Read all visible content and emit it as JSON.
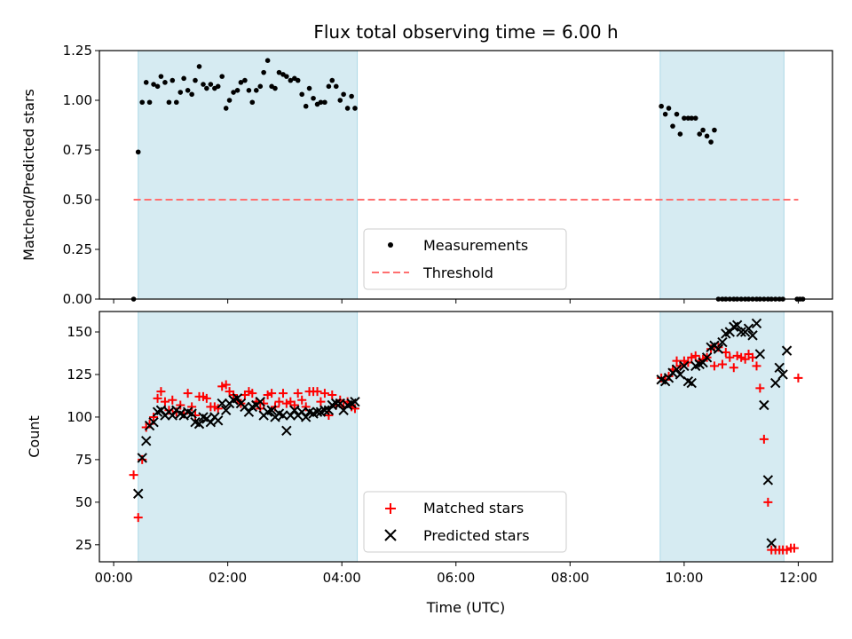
{
  "chart_data": [
    {
      "type": "scatter",
      "title": "Flux total observing time = 6.00 h",
      "xlabel": "",
      "ylabel": "Matched/Predicted stars",
      "xlim": [
        -0.25,
        12.6
      ],
      "ylim": [
        0,
        1.25
      ],
      "yticks": [
        "0.00",
        "0.25",
        "0.50",
        "0.75",
        "1.00",
        "1.25"
      ],
      "shaded_intervals": [
        [
          0.43,
          4.27
        ],
        [
          9.58,
          11.75
        ]
      ],
      "shade_color": "#add8e6",
      "legend_position": "lower-center",
      "series": [
        {
          "name": "Measurements",
          "marker": "dot",
          "color": "#000000",
          "x": [
            0.35,
            0.43,
            0.5,
            0.57,
            0.63,
            0.7,
            0.77,
            0.83,
            0.9,
            0.97,
            1.03,
            1.1,
            1.17,
            1.23,
            1.3,
            1.37,
            1.43,
            1.5,
            1.57,
            1.63,
            1.7,
            1.77,
            1.83,
            1.9,
            1.97,
            2.03,
            2.1,
            2.17,
            2.23,
            2.3,
            2.37,
            2.43,
            2.5,
            2.57,
            2.63,
            2.7,
            2.77,
            2.83,
            2.9,
            2.97,
            3.03,
            3.1,
            3.17,
            3.23,
            3.3,
            3.37,
            3.43,
            3.5,
            3.57,
            3.63,
            3.7,
            3.77,
            3.83,
            3.9,
            3.97,
            4.03,
            4.1,
            4.17,
            4.23,
            9.6,
            9.67,
            9.73,
            9.8,
            9.87,
            9.93,
            10.0,
            10.07,
            10.13,
            10.2,
            10.27,
            10.33,
            10.4,
            10.47,
            10.53,
            10.6,
            10.67,
            10.73,
            10.8,
            10.87,
            10.93,
            11.0,
            11.07,
            11.13,
            11.2,
            11.27,
            11.33,
            11.4,
            11.47,
            11.53,
            11.6,
            11.67,
            11.73,
            11.98,
            12.03,
            12.08
          ],
          "y": [
            0.0,
            0.74,
            0.99,
            1.09,
            0.99,
            1.08,
            1.07,
            1.12,
            1.09,
            0.99,
            1.1,
            0.99,
            1.04,
            1.11,
            1.05,
            1.03,
            1.1,
            1.17,
            1.08,
            1.06,
            1.08,
            1.06,
            1.07,
            1.12,
            0.96,
            1.0,
            1.04,
            1.05,
            1.09,
            1.1,
            1.05,
            0.99,
            1.05,
            1.07,
            1.14,
            1.2,
            1.07,
            1.06,
            1.14,
            1.13,
            1.12,
            1.1,
            1.11,
            1.1,
            1.03,
            0.97,
            1.06,
            1.01,
            0.98,
            0.99,
            0.99,
            1.07,
            1.1,
            1.07,
            1.0,
            1.03,
            0.96,
            1.02,
            0.96,
            0.97,
            0.93,
            0.96,
            0.87,
            0.93,
            0.83,
            0.91,
            0.91,
            0.91,
            0.91,
            0.83,
            0.85,
            0.82,
            0.79,
            0.85,
            0.0,
            0.0,
            0.0,
            0.0,
            0.0,
            0.0,
            0.0,
            0.0,
            0.0,
            0.0,
            0.0,
            0.0,
            0.0,
            0.0,
            0.0,
            0.0,
            0.0,
            0.0,
            0.0,
            0.0,
            0.0
          ]
        },
        {
          "name": "Threshold",
          "line": "dashed",
          "color": "#ff6f6f",
          "x": [
            0.35,
            12.0
          ],
          "y": [
            0.5,
            0.5
          ]
        }
      ]
    },
    {
      "type": "scatter",
      "title": "",
      "xlabel": "Time (UTC)",
      "ylabel": "Count",
      "xlim": [
        -0.25,
        12.6
      ],
      "ylim": [
        15,
        162
      ],
      "yticks": [
        "25",
        "50",
        "75",
        "100",
        "125",
        "150"
      ],
      "xticks": [
        "00:00",
        "02:00",
        "04:00",
        "06:00",
        "08:00",
        "10:00",
        "12:00"
      ],
      "shaded_intervals": [
        [
          0.43,
          4.27
        ],
        [
          9.58,
          11.75
        ]
      ],
      "shade_color": "#add8e6",
      "legend_position": "lower-center",
      "series": [
        {
          "name": "Matched stars",
          "marker": "plus",
          "color": "#ff0000",
          "x": [
            0.35,
            0.43,
            0.5,
            0.57,
            0.63,
            0.7,
            0.77,
            0.83,
            0.9,
            0.97,
            1.03,
            1.1,
            1.17,
            1.23,
            1.3,
            1.37,
            1.43,
            1.5,
            1.57,
            1.63,
            1.7,
            1.77,
            1.83,
            1.9,
            1.97,
            2.03,
            2.1,
            2.17,
            2.23,
            2.3,
            2.37,
            2.43,
            2.5,
            2.57,
            2.63,
            2.7,
            2.77,
            2.83,
            2.9,
            2.97,
            3.03,
            3.1,
            3.17,
            3.23,
            3.3,
            3.37,
            3.43,
            3.5,
            3.57,
            3.63,
            3.7,
            3.77,
            3.83,
            3.9,
            3.97,
            4.03,
            4.1,
            4.17,
            4.23,
            9.6,
            9.67,
            9.73,
            9.8,
            9.87,
            9.93,
            10.0,
            10.07,
            10.13,
            10.2,
            10.27,
            10.33,
            10.4,
            10.47,
            10.53,
            10.6,
            10.67,
            10.73,
            10.8,
            10.87,
            10.93,
            11.0,
            11.07,
            11.13,
            11.2,
            11.27,
            11.33,
            11.4,
            11.47,
            11.53,
            11.6,
            11.67,
            11.73,
            11.8,
            11.87,
            11.93,
            12.0
          ],
          "y": [
            66,
            41,
            75,
            94,
            96,
            100,
            111,
            115,
            109,
            104,
            110,
            103,
            107,
            102,
            114,
            106,
            101,
            112,
            112,
            111,
            106,
            106,
            105,
            118,
            119,
            115,
            113,
            110,
            108,
            113,
            115,
            114,
            109,
            105,
            108,
            113,
            114,
            106,
            109,
            114,
            108,
            109,
            107,
            114,
            110,
            106,
            115,
            115,
            115,
            109,
            114,
            101,
            113,
            107,
            110,
            106,
            109,
            106,
            105,
            123,
            122,
            124,
            128,
            133,
            130,
            133,
            132,
            135,
            136,
            133,
            134,
            135,
            140,
            130,
            141,
            131,
            138,
            135,
            129,
            136,
            135,
            134,
            137,
            135,
            130,
            117,
            87,
            50,
            22,
            22,
            22,
            22,
            22,
            23,
            23,
            123
          ]
        },
        {
          "name": "Predicted stars",
          "marker": "x",
          "color": "#000000",
          "x": [
            0.43,
            0.5,
            0.57,
            0.63,
            0.7,
            0.77,
            0.83,
            0.9,
            0.97,
            1.03,
            1.1,
            1.17,
            1.23,
            1.3,
            1.37,
            1.43,
            1.5,
            1.57,
            1.63,
            1.7,
            1.77,
            1.83,
            1.9,
            1.97,
            2.03,
            2.1,
            2.17,
            2.23,
            2.3,
            2.37,
            2.43,
            2.5,
            2.57,
            2.63,
            2.7,
            2.77,
            2.83,
            2.9,
            2.97,
            3.03,
            3.1,
            3.17,
            3.23,
            3.3,
            3.37,
            3.43,
            3.5,
            3.57,
            3.63,
            3.7,
            3.77,
            3.83,
            3.9,
            3.97,
            4.03,
            4.1,
            4.17,
            4.23,
            9.6,
            9.67,
            9.73,
            9.8,
            9.87,
            9.93,
            10.0,
            10.07,
            10.13,
            10.2,
            10.27,
            10.33,
            10.4,
            10.47,
            10.53,
            10.6,
            10.67,
            10.73,
            10.8,
            10.87,
            10.93,
            11.0,
            11.07,
            11.13,
            11.2,
            11.27,
            11.33,
            11.4,
            11.47,
            11.53,
            11.6,
            11.67,
            11.73,
            11.8
          ],
          "y": [
            55,
            76,
            86,
            95,
            97,
            103,
            104,
            101,
            103,
            101,
            104,
            102,
            101,
            103,
            102,
            97,
            96,
            100,
            99,
            97,
            100,
            98,
            108,
            104,
            108,
            110,
            111,
            108,
            106,
            103,
            106,
            107,
            109,
            101,
            103,
            104,
            100,
            102,
            101,
            92,
            101,
            104,
            101,
            103,
            100,
            103,
            102,
            103,
            103,
            104,
            104,
            107,
            108,
            108,
            104,
            107,
            108,
            109,
            122,
            121,
            123,
            126,
            128,
            125,
            130,
            121,
            120,
            130,
            131,
            132,
            135,
            141,
            142,
            140,
            144,
            149,
            150,
            153,
            154,
            150,
            150,
            152,
            148,
            155,
            137,
            107,
            63,
            26,
            120,
            129,
            125,
            139
          ]
        }
      ]
    }
  ]
}
